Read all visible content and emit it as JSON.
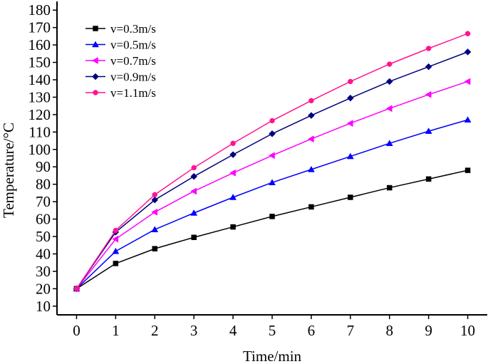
{
  "chart_data": {
    "type": "line",
    "title": "",
    "xlabel": "Time/min",
    "ylabel": "Temperature/°C",
    "xlim": [
      -0.5,
      10.5
    ],
    "ylim": [
      5,
      185
    ],
    "xticks": [
      0,
      1,
      2,
      3,
      4,
      5,
      6,
      7,
      8,
      9,
      10
    ],
    "yticks": [
      10,
      20,
      30,
      40,
      50,
      60,
      70,
      80,
      90,
      100,
      110,
      120,
      130,
      140,
      150,
      160,
      170,
      180
    ],
    "grid": false,
    "legend_position": "top-left",
    "x": [
      0,
      1,
      2,
      3,
      4,
      5,
      6,
      7,
      8,
      9,
      10
    ],
    "series": [
      {
        "name": "v=0.3m/s",
        "color": "#000000",
        "marker": "square",
        "values": [
          20,
          34.5,
          43,
          49.5,
          55.5,
          61.5,
          67,
          72.5,
          78,
          83,
          88
        ]
      },
      {
        "name": "v=0.5m/s",
        "color": "#0000ff",
        "marker": "triangle-up",
        "values": [
          20,
          41.5,
          54,
          63.5,
          72.5,
          81,
          88.5,
          96,
          103.5,
          110.5,
          117
        ]
      },
      {
        "name": "v=0.7m/s",
        "color": "#ff00ff",
        "marker": "triangle-left",
        "values": [
          20,
          48.5,
          64,
          76,
          86.5,
          96.5,
          106,
          115,
          123.5,
          131.5,
          139
        ]
      },
      {
        "name": "v=0.9m/s",
        "color": "#000080",
        "marker": "diamond",
        "values": [
          20,
          52.5,
          71,
          84.5,
          97,
          109,
          119.5,
          129.5,
          139,
          147.5,
          156
        ]
      },
      {
        "name": "v=1.1m/s",
        "color": "#ff1493",
        "marker": "circle",
        "values": [
          20,
          53.5,
          74,
          89.5,
          103.5,
          116.5,
          128,
          139,
          149,
          158,
          166.5
        ]
      }
    ]
  }
}
